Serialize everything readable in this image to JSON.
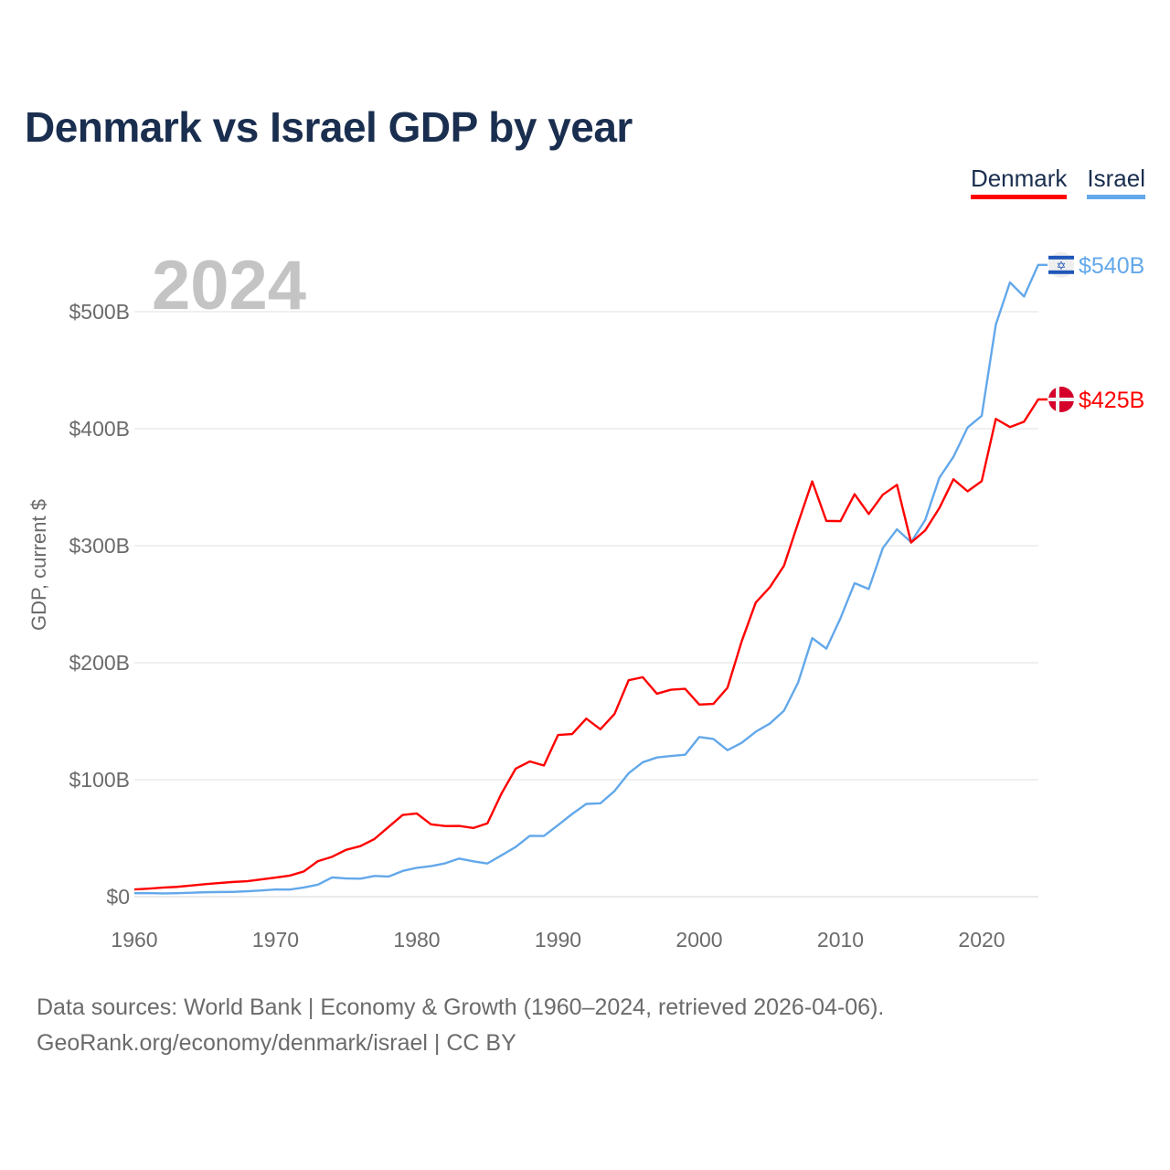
{
  "colors": {
    "Denmark": "#ff0000",
    "Israel": "#63a8ea",
    "title": "#1a2e4f"
  },
  "chart_data": {
    "type": "line",
    "title": "Denmark vs Israel GDP by year",
    "xlabel": "",
    "ylabel": "GDP, current $",
    "year_watermark": "2024",
    "xlim": [
      1960,
      2024
    ],
    "ylim": [
      0,
      540
    ],
    "x_ticks": [
      1960,
      1970,
      1980,
      1990,
      2000,
      2010,
      2020
    ],
    "y_ticks": [
      {
        "value": 0,
        "label": "$0"
      },
      {
        "value": 100,
        "label": "$100B"
      },
      {
        "value": 200,
        "label": "$200B"
      },
      {
        "value": 300,
        "label": "$300B"
      },
      {
        "value": 400,
        "label": "$400B"
      },
      {
        "value": 500,
        "label": "$500B"
      }
    ],
    "grid": true,
    "legend_position": "top-right",
    "x": [
      1960,
      1961,
      1962,
      1963,
      1964,
      1965,
      1966,
      1967,
      1968,
      1969,
      1970,
      1971,
      1972,
      1973,
      1974,
      1975,
      1976,
      1977,
      1978,
      1979,
      1980,
      1981,
      1982,
      1983,
      1984,
      1985,
      1986,
      1987,
      1988,
      1989,
      1990,
      1991,
      1992,
      1993,
      1994,
      1995,
      1996,
      1997,
      1998,
      1999,
      2000,
      2001,
      2002,
      2003,
      2004,
      2005,
      2006,
      2007,
      2008,
      2009,
      2010,
      2011,
      2012,
      2013,
      2014,
      2015,
      2016,
      2017,
      2018,
      2019,
      2020,
      2021,
      2022,
      2023,
      2024
    ],
    "series": [
      {
        "name": "Denmark",
        "end_label": "$425B",
        "flag": "denmark-flag",
        "values": [
          6.2,
          6.9,
          7.8,
          8.4,
          9.5,
          10.7,
          11.7,
          12.6,
          13.2,
          14.8,
          16.4,
          18.0,
          21.6,
          30.4,
          34.1,
          40.1,
          43.2,
          49.3,
          59.6,
          69.9,
          71.1,
          61.9,
          60.4,
          60.5,
          58.7,
          62.7,
          88.3,
          109.4,
          115.6,
          112.1,
          138.2,
          139.0,
          152.2,
          143.1,
          156.2,
          185.0,
          187.6,
          173.5,
          176.9,
          177.7,
          164.2,
          164.8,
          178.6,
          218.1,
          251.4,
          264.5,
          282.9,
          319.4,
          355.0,
          321.2,
          321.0,
          344.0,
          327.1,
          343.6,
          352.0,
          302.7,
          313.1,
          332.1,
          356.8,
          346.5,
          355.2,
          408.4,
          401.4,
          406.0,
          425.0
        ]
      },
      {
        "name": "Israel",
        "end_label": "$540B",
        "flag": "israel-flag",
        "values": [
          3.0,
          3.1,
          2.8,
          3.0,
          3.4,
          3.8,
          4.0,
          4.1,
          4.6,
          5.3,
          6.2,
          6.1,
          7.9,
          10.3,
          16.5,
          15.6,
          15.4,
          17.7,
          17.2,
          22.0,
          24.7,
          26.1,
          28.5,
          32.6,
          30.2,
          28.4,
          35.4,
          42.5,
          52.0,
          51.9,
          61.2,
          70.7,
          79.3,
          79.8,
          90.3,
          105.5,
          114.9,
          119.0,
          120.3,
          121.3,
          136.5,
          134.8,
          125.2,
          131.5,
          141.0,
          148.0,
          159.0,
          183.0,
          221.0,
          212.0,
          238.0,
          268.0,
          263.0,
          298.0,
          314.0,
          303.0,
          322.0,
          358.0,
          376.0,
          401.0,
          411.0,
          489.0,
          525.0,
          513.0,
          540.0
        ]
      }
    ]
  },
  "footer": {
    "line1": "Data sources: World Bank | Economy & Growth (1960–2024, retrieved 2026-04-06).",
    "line2": "GeoRank.org/economy/denmark/israel | CC BY"
  }
}
